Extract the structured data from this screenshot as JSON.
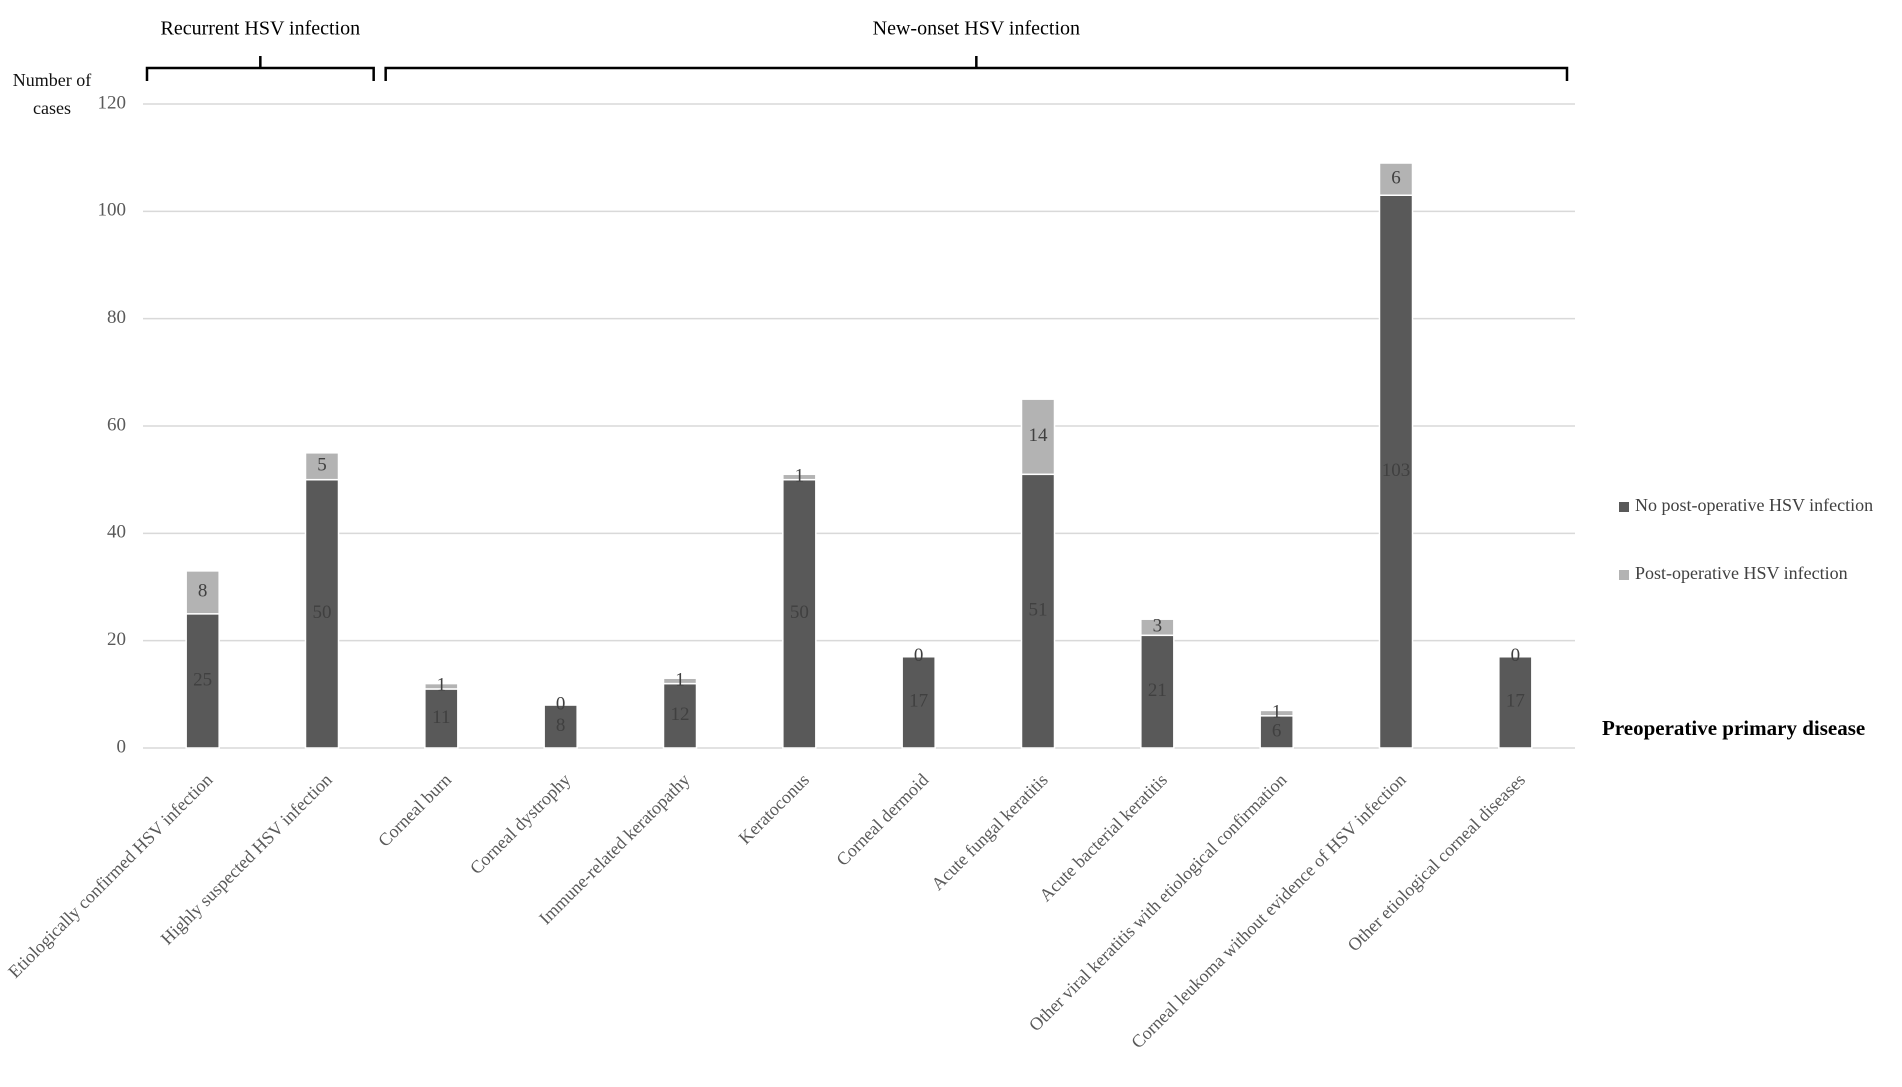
{
  "chart_data": {
    "type": "stacked_bar",
    "y_label": "Number of cases",
    "x_label": "Preoperative primary disease",
    "categories": [
      "Etiologically confirmed HSV infection",
      "Highly suspected HSV infection",
      "Corneal burn",
      "Corneal dystrophy",
      "Immune-related keratopathy",
      "Keratoconus",
      "Corneal dermoid",
      "Acute fungal keratitis",
      "Acute bacterial keratitis",
      "Other viral keratitis with etiological confirmation",
      "Corneal leukoma without evidence of HSV infection",
      "Other etiological corneal diseases"
    ],
    "series": [
      {
        "name": "No post-operative HSV infection",
        "color": "#595959",
        "values": [
          25,
          50,
          11,
          8,
          12,
          50,
          17,
          51,
          21,
          6,
          103,
          17
        ]
      },
      {
        "name": "Post-operative HSV infection",
        "color": "#b3b3b3",
        "values": [
          8,
          5,
          1,
          0,
          1,
          1,
          0,
          14,
          3,
          1,
          6,
          0
        ]
      }
    ],
    "groups": [
      {
        "label": "Recurrent HSV infection",
        "categories": [
          "Etiologically confirmed HSV infection",
          "Highly suspected HSV infection"
        ]
      },
      {
        "label": "New-onset HSV infection",
        "categories": [
          "Corneal burn",
          "Other etiological corneal diseases"
        ]
      }
    ],
    "ylim": [
      0,
      120
    ],
    "yticks": [
      0,
      20,
      40,
      60,
      80,
      100,
      120
    ],
    "grid": true,
    "legend": "right"
  }
}
